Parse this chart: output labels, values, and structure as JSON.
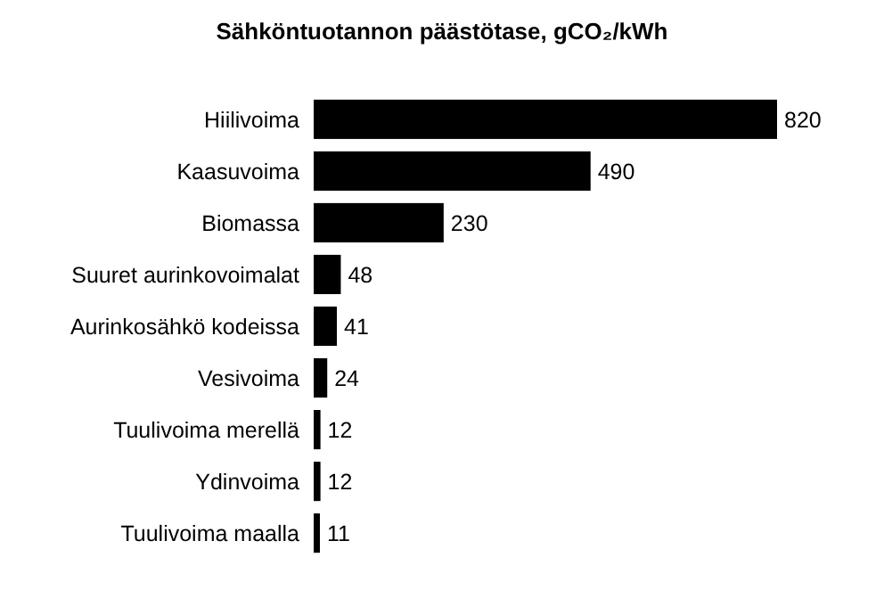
{
  "chart_data": {
    "type": "bar",
    "orientation": "horizontal",
    "title": "Sähköntuotannon päästötase, gCO₂/kWh",
    "categories": [
      "Hiilivoima",
      "Kaasuvoima",
      "Biomassa",
      "Suuret aurinkovoimalat",
      "Aurinkosähkö kodeissa",
      "Vesivoima",
      "Tuulivoima merellä",
      "Ydinvoima",
      "Tuulivoima maalla"
    ],
    "values": [
      820,
      490,
      230,
      48,
      41,
      24,
      12,
      12,
      11
    ],
    "color": "#000000",
    "data_labels": true
  }
}
